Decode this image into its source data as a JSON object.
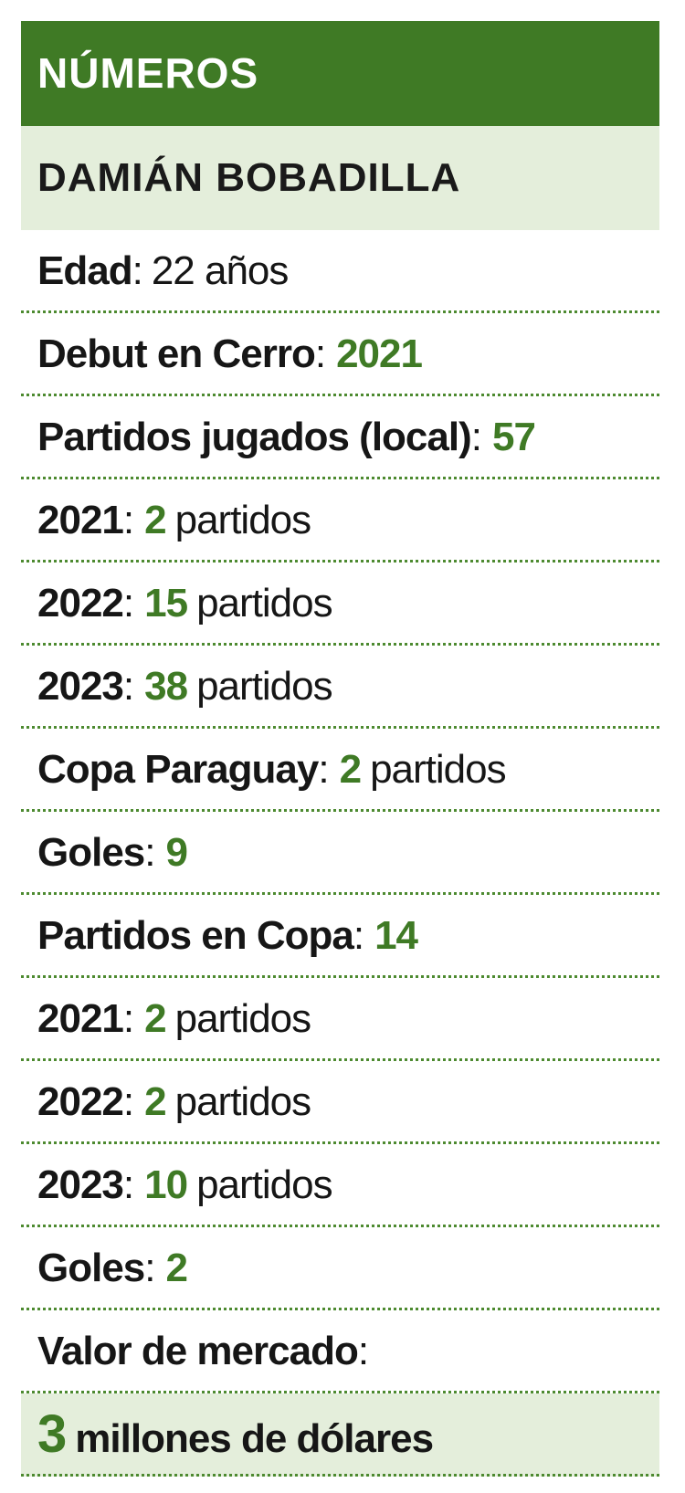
{
  "header": {
    "title": "NÚMEROS",
    "subtitle": "DAMIÁN BOBADILLA"
  },
  "rows": [
    {
      "label": "Edad",
      "sep": ":",
      "text": "22 años"
    },
    {
      "label": "Debut en Cerro",
      "sep": ":",
      "value": 2021
    },
    {
      "label": "Partidos jugados (local)",
      "sep": ":",
      "value": 57
    },
    {
      "label": "2021",
      "sep": ":",
      "value": 2,
      "unit": "partidos"
    },
    {
      "label": "2022",
      "sep": ":",
      "value": 15,
      "unit": "partidos"
    },
    {
      "label": "2023",
      "sep": ":",
      "value": 38,
      "unit": "partidos"
    },
    {
      "label": "Copa Paraguay",
      "sep": ":",
      "value": 2,
      "unit": "partidos"
    },
    {
      "label": "Goles",
      "sep": ":",
      "value": 9
    },
    {
      "label": "Partidos en Copa",
      "sep": ":",
      "value": 14
    },
    {
      "label": "2021",
      "sep": ":",
      "value": 2,
      "unit": "partidos"
    },
    {
      "label": "2022",
      "sep": ":",
      "value": 2,
      "unit": "partidos"
    },
    {
      "label": "2023",
      "sep": ":",
      "value": 10,
      "unit": "partidos"
    },
    {
      "label": "Goles",
      "sep": ":",
      "value": 2
    },
    {
      "label": "Valor de mercado",
      "sep": ":"
    }
  ],
  "footer": {
    "value": 3,
    "text": "millones de dólares"
  }
}
